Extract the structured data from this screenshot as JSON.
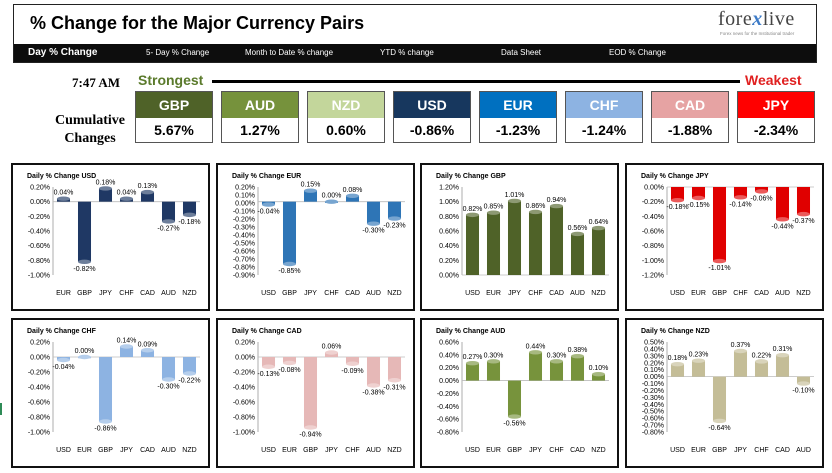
{
  "header": {
    "title": "% Change for the Major Currency Pairs",
    "logo": {
      "text_a": "fore",
      "text_x": "x",
      "text_b": "live",
      "tagline": "Forex news for the Institutional trader"
    },
    "nav": [
      "Day % Change",
      "5- Day % Change",
      "Month to Date % change",
      "YTD % change",
      "Data Sheet",
      "EOD % Change"
    ]
  },
  "summary": {
    "time": "7:47 AM",
    "strongest_label": "Strongest",
    "weakest_label": "Weakest",
    "cumulative_label_1": "Cumulative",
    "cumulative_label_2": "Changes",
    "currencies": [
      {
        "name": "GBP",
        "value": "5.67%",
        "color": "#4f6228"
      },
      {
        "name": "AUD",
        "value": "1.27%",
        "color": "#76923c"
      },
      {
        "name": "NZD",
        "value": "0.60%",
        "color": "#c3d69b"
      },
      {
        "name": "USD",
        "value": "-0.86%",
        "color": "#17375e"
      },
      {
        "name": "EUR",
        "value": "-1.23%",
        "color": "#0070c0"
      },
      {
        "name": "CHF",
        "value": "-1.24%",
        "color": "#8db3e2"
      },
      {
        "name": "CAD",
        "value": "-1.88%",
        "color": "#e6a3a3"
      },
      {
        "name": "JPY",
        "value": "-2.34%",
        "color": "#ff0000"
      }
    ]
  },
  "chart_data": [
    {
      "type": "bar",
      "title": "Daily % Change USD",
      "categories": [
        "EUR",
        "GBP",
        "JPY",
        "CHF",
        "CAD",
        "AUD",
        "NZD"
      ],
      "values": [
        0.04,
        -0.82,
        0.18,
        0.04,
        0.13,
        -0.27,
        -0.18
      ],
      "labels": [
        "0.04%",
        "-0.82%",
        "0.18%",
        "0.04%",
        "0.13%",
        "-0.27%",
        "-0.18%"
      ],
      "ylim": [
        -1.0,
        0.2
      ],
      "ticks": [
        "0.20%",
        "0.00%",
        "-0.20%",
        "-0.40%",
        "-0.60%",
        "-0.80%",
        "-1.00%"
      ],
      "color": "#1f3864"
    },
    {
      "type": "bar",
      "title": "Daily % Change EUR",
      "categories": [
        "USD",
        "GBP",
        "JPY",
        "CHF",
        "CAD",
        "AUD",
        "NZD"
      ],
      "values": [
        -0.04,
        -0.85,
        0.15,
        0.0,
        0.08,
        -0.3,
        -0.23
      ],
      "labels": [
        "-0.04%",
        "-0.85%",
        "0.15%",
        "0.00%",
        "0.08%",
        "-0.30%",
        "-0.23%"
      ],
      "ylim": [
        -1.0,
        0.2
      ],
      "ticks": [
        "0.20%",
        "0.10%",
        "0.00%",
        "-0.10%",
        "-0.20%",
        "-0.30%",
        "-0.40%",
        "-0.50%",
        "-0.60%",
        "-0.70%",
        "-0.80%",
        "-0.90%"
      ],
      "color": "#2e75b6"
    },
    {
      "type": "bar",
      "title": "Daily % Change GBP",
      "categories": [
        "USD",
        "EUR",
        "JPY",
        "CHF",
        "CAD",
        "AUD",
        "NZD"
      ],
      "values": [
        0.82,
        0.85,
        1.01,
        0.86,
        0.94,
        0.56,
        0.64
      ],
      "labels": [
        "0.82%",
        "0.85%",
        "1.01%",
        "0.86%",
        "0.94%",
        "0.56%",
        "0.64%"
      ],
      "ylim": [
        0.0,
        1.2
      ],
      "ticks": [
        "1.20%",
        "1.00%",
        "0.80%",
        "0.60%",
        "0.40%",
        "0.20%",
        "0.00%"
      ],
      "color": "#4f6228"
    },
    {
      "type": "bar",
      "title": "Daily % Change JPY",
      "categories": [
        "USD",
        "EUR",
        "GBP",
        "CHF",
        "CAD",
        "AUD",
        "NZD"
      ],
      "values": [
        -0.18,
        -0.15,
        -1.01,
        -0.14,
        -0.06,
        -0.44,
        -0.37
      ],
      "labels": [
        "-0.18%",
        "-0.15%",
        "-1.01%",
        "-0.14%",
        "-0.06%",
        "-0.44%",
        "-0.37%"
      ],
      "ylim": [
        -1.2,
        0.0
      ],
      "ticks": [
        "0.00%",
        "-0.20%",
        "-0.40%",
        "-0.60%",
        "-0.80%",
        "-1.00%",
        "-1.20%"
      ],
      "color": "#e00000"
    },
    {
      "type": "bar",
      "title": "Daily % Change CHF",
      "categories": [
        "USD",
        "EUR",
        "GBP",
        "JPY",
        "CAD",
        "AUD",
        "NZD"
      ],
      "values": [
        -0.04,
        0.0,
        -0.86,
        0.14,
        0.09,
        -0.3,
        -0.22
      ],
      "labels": [
        "-0.04%",
        "0.00%",
        "-0.86%",
        "0.14%",
        "0.09%",
        "-0.30%",
        "-0.22%"
      ],
      "ylim": [
        -1.0,
        0.2
      ],
      "ticks": [
        "0.20%",
        "0.00%",
        "-0.20%",
        "-0.40%",
        "-0.60%",
        "-0.80%",
        "-1.00%"
      ],
      "color": "#8db3e2"
    },
    {
      "type": "bar",
      "title": "Daily % Change CAD",
      "categories": [
        "USD",
        "EUR",
        "GBP",
        "JPY",
        "CHF",
        "AUD",
        "NZD"
      ],
      "values": [
        -0.13,
        -0.08,
        -0.94,
        0.06,
        -0.09,
        -0.38,
        -0.31
      ],
      "labels": [
        "-0.13%",
        "-0.08%",
        "-0.94%",
        "0.06%",
        "-0.09%",
        "-0.38%",
        "-0.31%"
      ],
      "ylim": [
        -1.0,
        0.2
      ],
      "ticks": [
        "0.20%",
        "0.00%",
        "-0.20%",
        "-0.40%",
        "-0.60%",
        "-0.80%",
        "-1.00%"
      ],
      "color": "#e6b8b7"
    },
    {
      "type": "bar",
      "title": "Daily % Change AUD",
      "categories": [
        "USD",
        "EUR",
        "GBP",
        "JPY",
        "CHF",
        "CAD",
        "NZD"
      ],
      "values": [
        0.27,
        0.3,
        -0.56,
        0.44,
        0.3,
        0.38,
        0.1
      ],
      "labels": [
        "0.27%",
        "0.30%",
        "-0.56%",
        "0.44%",
        "0.30%",
        "0.38%",
        "0.10%"
      ],
      "ylim": [
        -0.8,
        0.6
      ],
      "ticks": [
        "0.60%",
        "0.40%",
        "0.20%",
        "0.00%",
        "-0.20%",
        "-0.40%",
        "-0.60%",
        "-0.80%"
      ],
      "color": "#77933c"
    },
    {
      "type": "bar",
      "title": "Daily % Change NZD",
      "categories": [
        "USD",
        "EUR",
        "GBP",
        "JPY",
        "CHF",
        "CAD",
        "AUD"
      ],
      "values": [
        0.18,
        0.23,
        -0.64,
        0.37,
        0.22,
        0.31,
        -0.1
      ],
      "labels": [
        "0.18%",
        "0.23%",
        "-0.64%",
        "0.37%",
        "0.22%",
        "0.31%",
        "-0.10%"
      ],
      "ylim": [
        -0.8,
        0.5
      ],
      "ticks": [
        "0.50%",
        "0.40%",
        "0.30%",
        "0.20%",
        "0.10%",
        "0.00%",
        "-0.10%",
        "-0.20%",
        "-0.30%",
        "-0.40%",
        "-0.50%",
        "-0.60%",
        "-0.70%",
        "-0.80%"
      ],
      "color": "#c4bd97"
    }
  ]
}
